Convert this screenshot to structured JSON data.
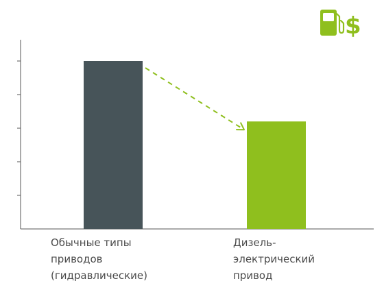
{
  "chart_data": {
    "type": "bar",
    "categories": [
      "Обычные типы приводов (гидравлические)",
      "Дизель-электрический привод"
    ],
    "category_lines": [
      [
        "Обычные типы",
        "приводов",
        "(гидравлические)"
      ],
      [
        "Дизель-",
        "электрический",
        "привод"
      ]
    ],
    "values": [
      100,
      64
    ],
    "ylim": [
      0,
      120
    ],
    "y_ticks": [
      20,
      40,
      60,
      80,
      100
    ],
    "show_tick_labels": false,
    "grid": false,
    "title": "",
    "xlabel": "",
    "ylabel": "",
    "colors": [
      "#475459",
      "#8fbf1e"
    ],
    "arrow_color": "#8fbf1e",
    "annotation": "dashed arrow from top of first bar to top of second bar",
    "icon": "fuel-pump-dollar-icon"
  }
}
